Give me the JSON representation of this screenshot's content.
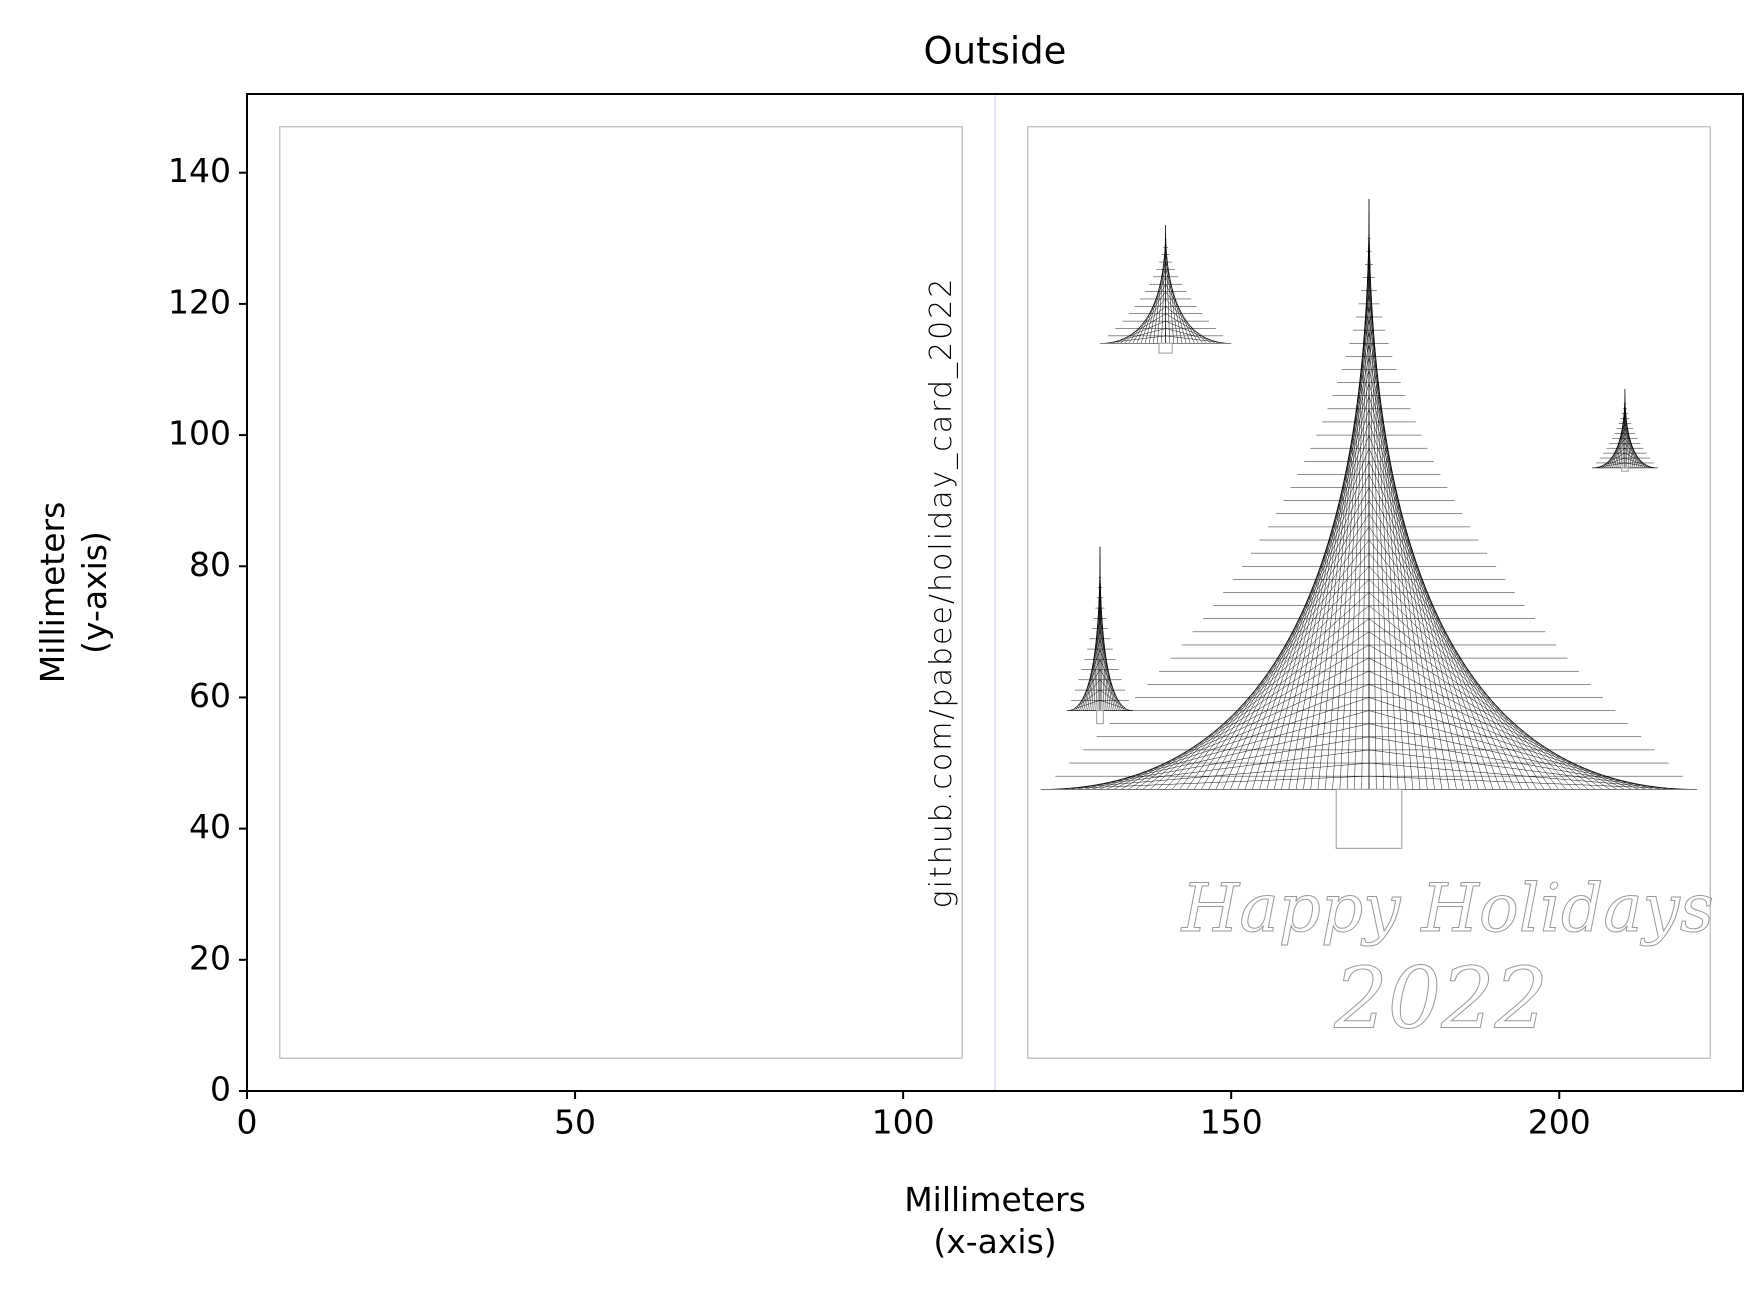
{
  "chart_data": {
    "type": "drawing",
    "title": "Outside",
    "xlabel": "Millimeters\n(x-axis)",
    "ylabel": "Millimeters\n(y-axis)",
    "xlim": [
      0,
      228
    ],
    "ylim": [
      0,
      152
    ],
    "xticks": [
      0,
      50,
      100,
      150,
      200
    ],
    "yticks": [
      0,
      20,
      40,
      60,
      80,
      100,
      120,
      140
    ],
    "grid": false,
    "panels": [
      {
        "x": [
          5,
          109
        ],
        "y": [
          5,
          147
        ]
      },
      {
        "x": [
          119,
          223
        ],
        "y": [
          5,
          147
        ]
      }
    ],
    "fold_x": 114,
    "trees": [
      {
        "apex": [
          171,
          136
        ],
        "base_x": [
          121,
          221
        ],
        "base_y": 46,
        "trunk_x": [
          166,
          176
        ],
        "trunk_y": [
          37,
          46
        ]
      },
      {
        "apex": [
          140,
          132
        ],
        "base_x": [
          130,
          150
        ],
        "base_y": 114,
        "trunk_x": [
          139,
          141
        ],
        "trunk_y": [
          112.5,
          114
        ]
      },
      {
        "apex": [
          130,
          83
        ],
        "base_x": [
          125,
          135
        ],
        "base_y": 58,
        "trunk_x": [
          129.5,
          130.5
        ],
        "trunk_y": [
          56,
          58
        ]
      },
      {
        "apex": [
          210,
          107
        ],
        "base_x": [
          205,
          215
        ],
        "base_y": 95,
        "trunk_x": [
          209.5,
          210.5
        ],
        "trunk_y": [
          94.5,
          95
        ]
      }
    ],
    "annotations": [
      {
        "text": "Happy Holidays",
        "x": 183,
        "y": 27,
        "rotation": 0
      },
      {
        "text": "2022",
        "x": 182,
        "y": 13,
        "rotation": 0
      },
      {
        "text": "github.com/pabee/holiday_card_2022",
        "x": 106,
        "y": 76,
        "rotation": 90
      }
    ]
  }
}
